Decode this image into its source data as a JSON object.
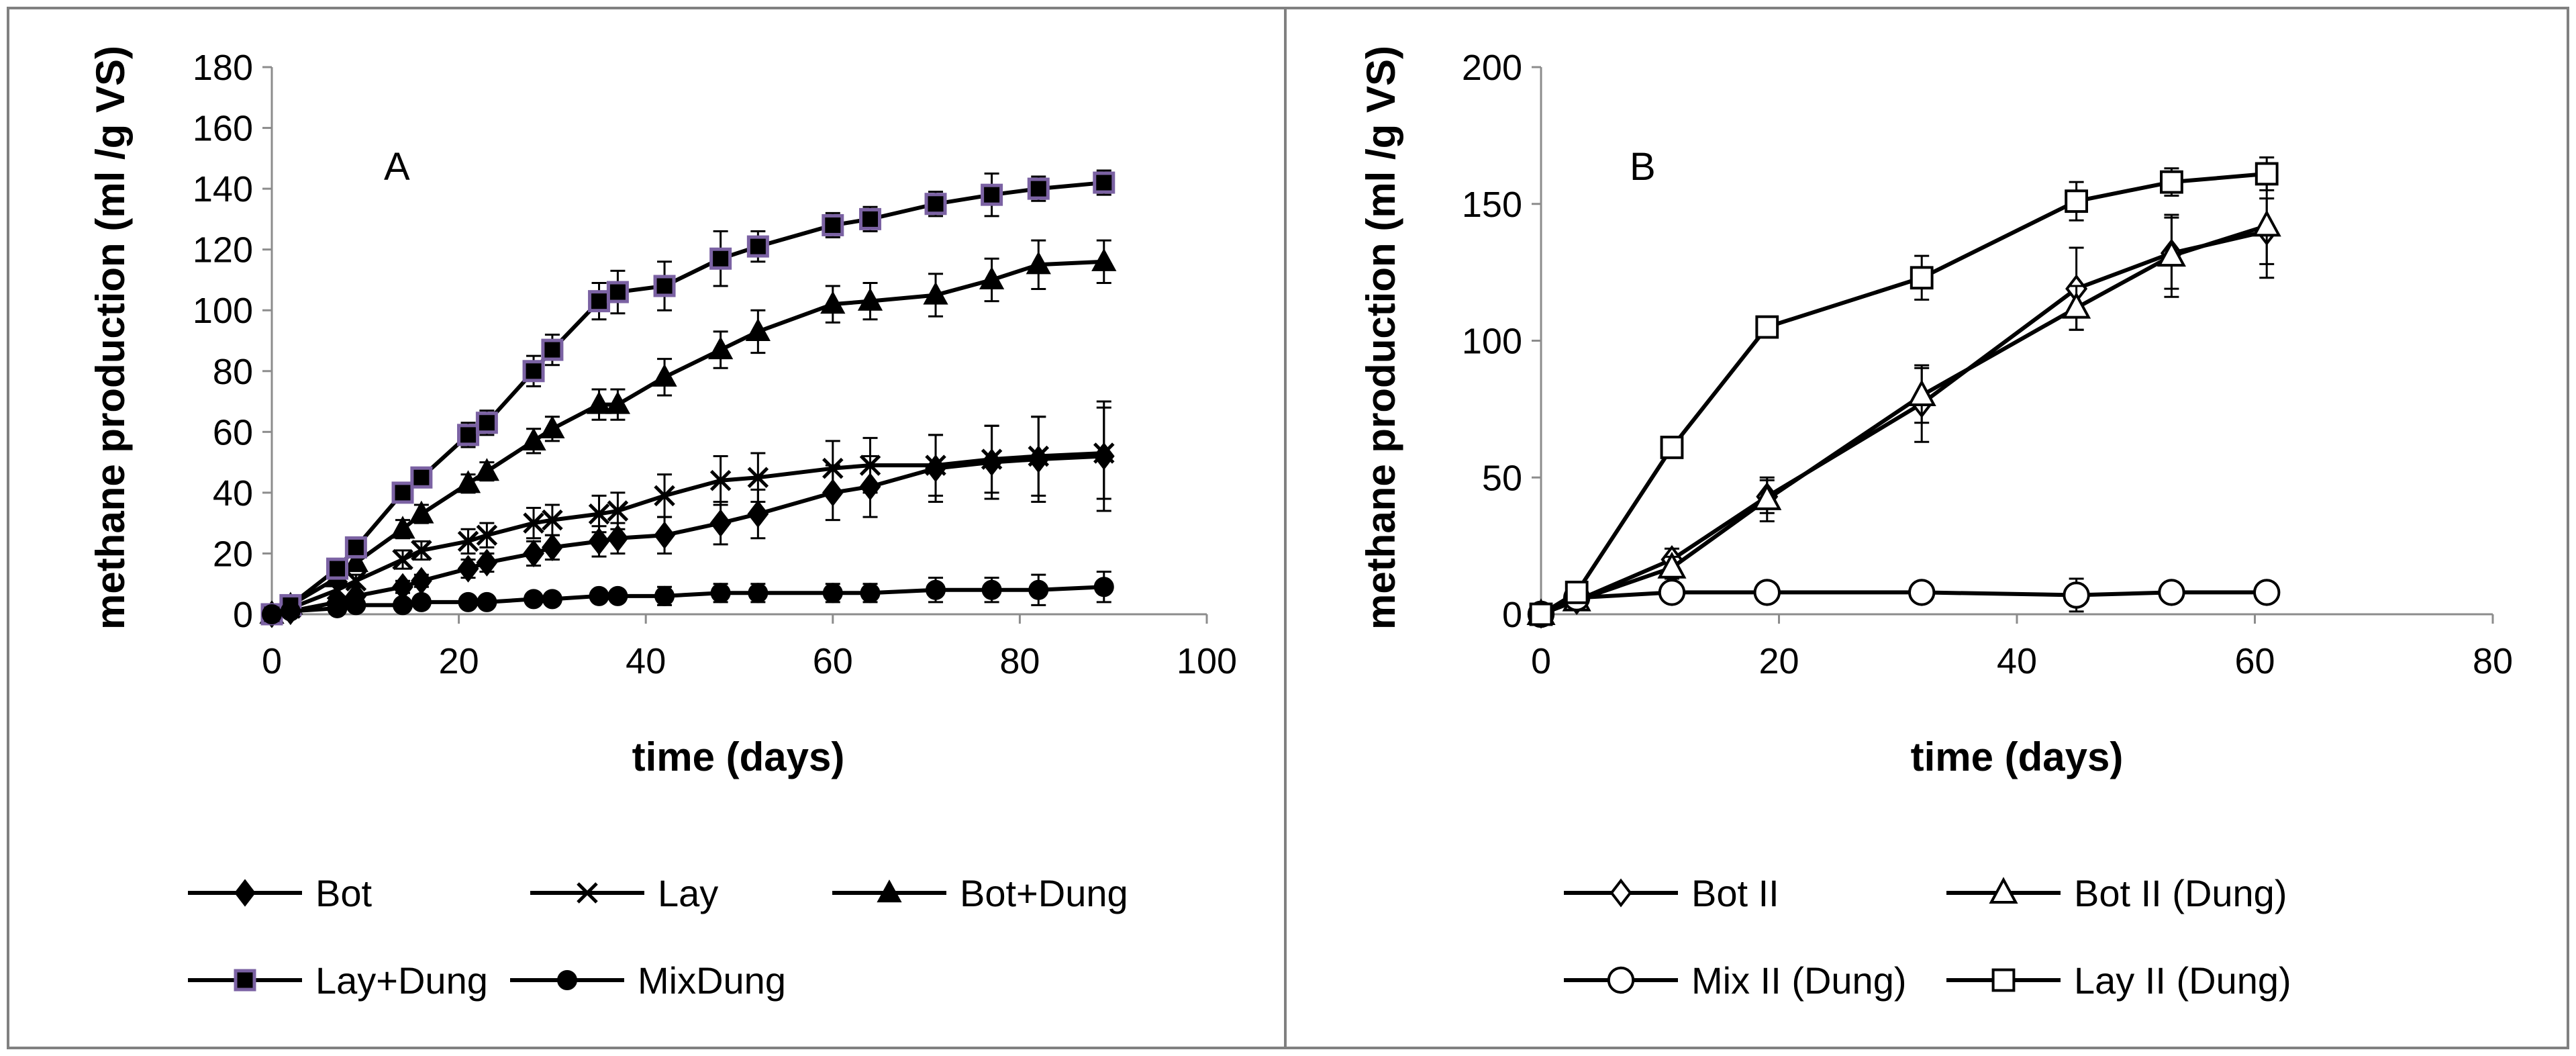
{
  "chart_data": [
    {
      "type": "line",
      "panel_label": "A",
      "xlabel": "time (days)",
      "ylabel": "methane production (ml /g VS)",
      "xlim": [
        0,
        100
      ],
      "ylim": [
        0,
        180
      ],
      "xticks": [
        0,
        20,
        40,
        60,
        80,
        100
      ],
      "yticks": [
        0,
        20,
        40,
        60,
        80,
        100,
        120,
        140,
        160,
        180
      ],
      "grid": false,
      "legend_position": "bottom",
      "series": [
        {
          "name": "Bot",
          "marker": "diamond-filled",
          "color": "#000000",
          "x": [
            0,
            2,
            7,
            9,
            14,
            16,
            21,
            23,
            28,
            30,
            35,
            37,
            42,
            48,
            52,
            60,
            64,
            71,
            77,
            82,
            89
          ],
          "y": [
            0,
            1,
            4,
            6,
            9,
            11,
            15,
            17,
            20,
            22,
            24,
            25,
            26,
            30,
            33,
            40,
            42,
            48,
            50,
            51,
            52
          ],
          "err": [
            0,
            0.5,
            1,
            1,
            2,
            2,
            3,
            3,
            4,
            4,
            5,
            5,
            6,
            7,
            8,
            9,
            10,
            11,
            12,
            14,
            18
          ]
        },
        {
          "name": "Lay",
          "marker": "x",
          "color": "#000000",
          "x": [
            0,
            2,
            7,
            9,
            14,
            16,
            21,
            23,
            28,
            30,
            35,
            37,
            42,
            48,
            52,
            60,
            64,
            71,
            77,
            82,
            89
          ],
          "y": [
            0,
            2,
            8,
            11,
            18,
            21,
            24,
            26,
            30,
            31,
            33,
            34,
            39,
            44,
            45,
            48,
            49,
            49,
            51,
            52,
            53
          ],
          "err": [
            0,
            1,
            2,
            2,
            3,
            3,
            4,
            4,
            5,
            5,
            6,
            6,
            7,
            8,
            8,
            9,
            9,
            10,
            11,
            13,
            15
          ]
        },
        {
          "name": "Bot+Dung",
          "marker": "triangle-filled",
          "color": "#000000",
          "x": [
            0,
            2,
            7,
            9,
            14,
            16,
            21,
            23,
            28,
            30,
            35,
            37,
            42,
            48,
            52,
            60,
            64,
            71,
            77,
            82,
            89
          ],
          "y": [
            0,
            3,
            12,
            17,
            28,
            33,
            43,
            47,
            57,
            61,
            69,
            69,
            78,
            87,
            93,
            102,
            103,
            105,
            110,
            115,
            116
          ],
          "err": [
            0,
            1,
            2,
            2,
            3,
            3,
            3,
            3,
            4,
            4,
            5,
            5,
            6,
            6,
            7,
            6,
            6,
            7,
            7,
            8,
            7
          ]
        },
        {
          "name": "Lay+Dung",
          "marker": "square-filled-purple-edge",
          "color": "#000000",
          "marker_edge": "#7b62a3",
          "x": [
            0,
            2,
            7,
            9,
            14,
            16,
            21,
            23,
            28,
            30,
            35,
            37,
            42,
            48,
            52,
            60,
            64,
            71,
            77,
            82,
            89
          ],
          "y": [
            0,
            3,
            15,
            22,
            40,
            45,
            59,
            63,
            80,
            87,
            103,
            106,
            108,
            117,
            121,
            128,
            130,
            135,
            138,
            140,
            142
          ],
          "err": [
            0,
            1,
            2,
            2,
            3,
            3,
            4,
            4,
            5,
            5,
            6,
            7,
            8,
            9,
            5,
            4,
            4,
            4,
            7,
            4,
            4
          ]
        },
        {
          "name": "MixDung",
          "marker": "circle-filled",
          "color": "#000000",
          "x": [
            0,
            2,
            7,
            9,
            14,
            16,
            21,
            23,
            28,
            30,
            35,
            37,
            42,
            48,
            52,
            60,
            64,
            71,
            77,
            82,
            89
          ],
          "y": [
            0,
            1,
            2,
            3,
            3,
            4,
            4,
            4,
            5,
            5,
            6,
            6,
            6,
            7,
            7,
            7,
            7,
            8,
            8,
            8,
            9
          ],
          "err": [
            0,
            0.5,
            0.5,
            0.5,
            1,
            1,
            1,
            1,
            1,
            2,
            2,
            2,
            3,
            3,
            3,
            3,
            3,
            4,
            4,
            5,
            5
          ]
        }
      ]
    },
    {
      "type": "line",
      "panel_label": "B",
      "xlabel": "time (days)",
      "ylabel": "methane production (ml /g VS)",
      "xlim": [
        0,
        80
      ],
      "ylim": [
        0,
        200
      ],
      "xticks": [
        0,
        20,
        40,
        60,
        80
      ],
      "yticks": [
        0,
        50,
        100,
        150,
        200
      ],
      "grid": false,
      "legend_position": "bottom",
      "series": [
        {
          "name": "Bot II",
          "marker": "diamond-open",
          "color": "#000000",
          "x": [
            0,
            3,
            11,
            19,
            32,
            45,
            53,
            61
          ],
          "y": [
            0,
            5,
            20,
            43,
            77,
            119,
            132,
            140
          ],
          "err": [
            0,
            2,
            4,
            6,
            14,
            15,
            13,
            12
          ]
        },
        {
          "name": "Bot II (Dung)",
          "marker": "triangle-open",
          "color": "#000000",
          "x": [
            0,
            3,
            11,
            19,
            32,
            45,
            53,
            61
          ],
          "y": [
            0,
            5,
            17,
            42,
            80,
            112,
            131,
            142
          ],
          "err": [
            0,
            2,
            4,
            8,
            10,
            8,
            15,
            19
          ]
        },
        {
          "name": "Mix II (Dung)",
          "marker": "circle-open",
          "color": "#000000",
          "x": [
            0,
            3,
            11,
            19,
            32,
            45,
            53,
            61
          ],
          "y": [
            0,
            6,
            8,
            8,
            8,
            7,
            8,
            8
          ],
          "err": [
            0,
            2,
            3,
            3,
            3,
            6,
            3,
            3
          ]
        },
        {
          "name": "Lay II (Dung)",
          "marker": "square-open",
          "color": "#000000",
          "x": [
            0,
            3,
            11,
            19,
            32,
            45,
            53,
            61
          ],
          "y": [
            0,
            8,
            61,
            105,
            123,
            151,
            158,
            161
          ],
          "err": [
            0,
            2,
            3,
            3,
            8,
            7,
            5,
            6
          ]
        }
      ]
    }
  ]
}
